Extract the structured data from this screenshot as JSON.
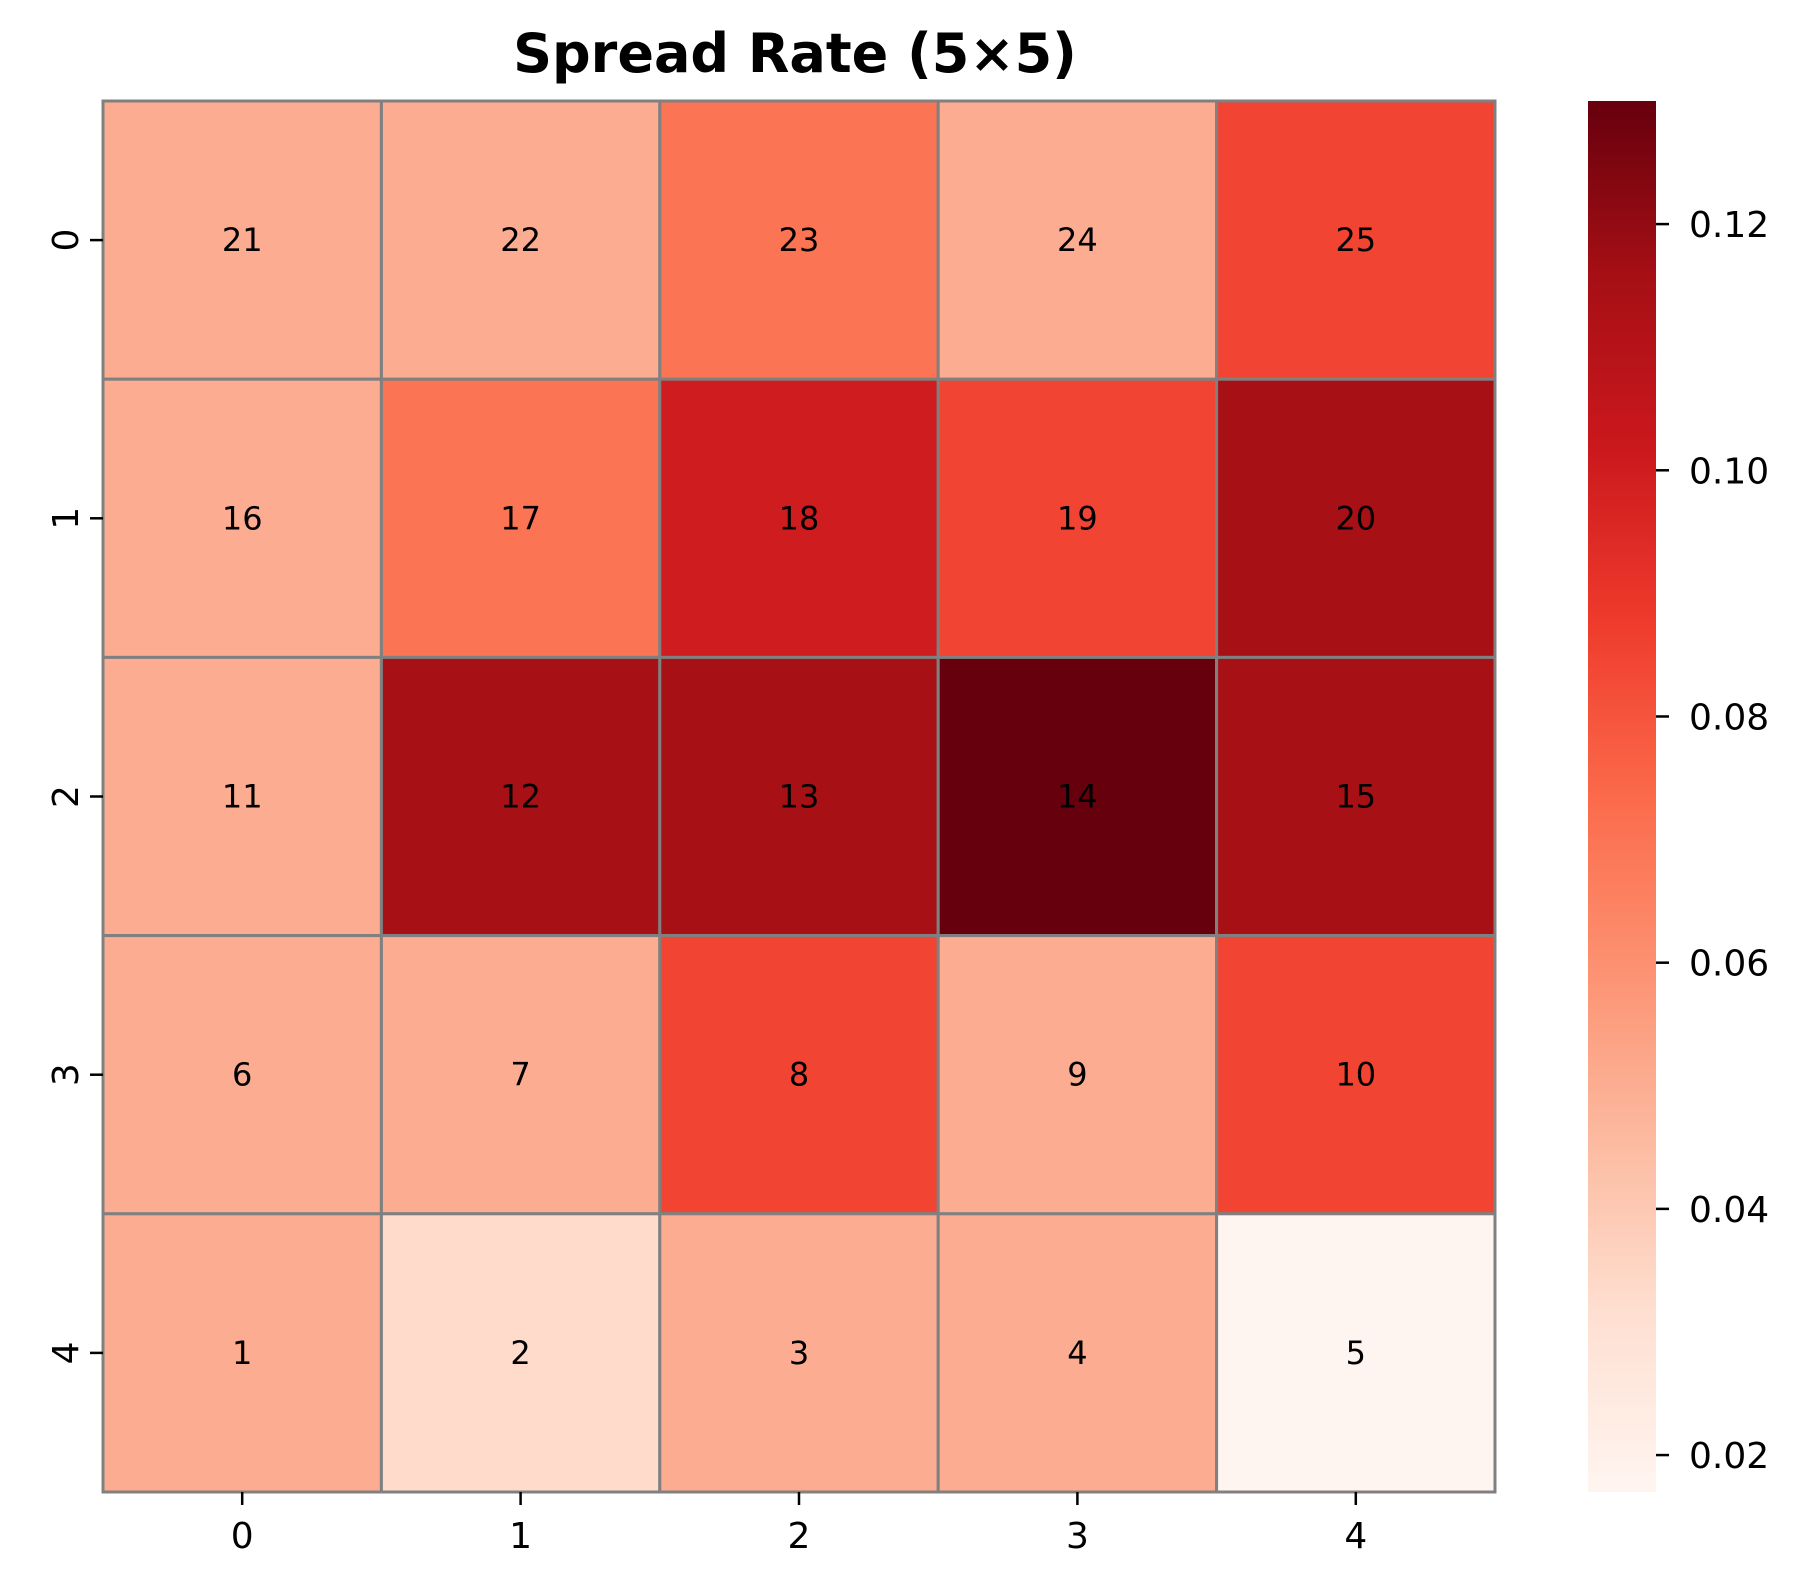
{
  "chart_data": {
    "type": "heatmap",
    "title": "Spread Rate (5×5)",
    "xlabel": "",
    "ylabel": "",
    "x_ticks": [
      "0",
      "1",
      "2",
      "3",
      "4"
    ],
    "y_ticks": [
      "0",
      "1",
      "2",
      "3",
      "4"
    ],
    "cell_labels": [
      [
        "21",
        "22",
        "23",
        "24",
        "25"
      ],
      [
        "16",
        "17",
        "18",
        "19",
        "20"
      ],
      [
        "11",
        "12",
        "13",
        "14",
        "15"
      ],
      [
        "6",
        "7",
        "8",
        "9",
        "10"
      ],
      [
        "1",
        "2",
        "3",
        "4",
        "5"
      ]
    ],
    "values": [
      [
        0.05,
        0.05,
        0.07,
        0.05,
        0.085
      ],
      [
        0.05,
        0.07,
        0.1,
        0.085,
        0.115
      ],
      [
        0.05,
        0.115,
        0.115,
        0.13,
        0.115
      ],
      [
        0.05,
        0.05,
        0.085,
        0.05,
        0.085
      ],
      [
        0.05,
        0.033,
        0.05,
        0.05,
        0.017
      ]
    ],
    "colormap": "Reds",
    "colorbar": {
      "min": 0.017,
      "max": 0.13,
      "ticks": [
        0.02,
        0.04,
        0.06,
        0.08,
        0.1,
        0.12
      ],
      "tick_labels": [
        "0.02",
        "0.04",
        "0.06",
        "0.08",
        "0.10",
        "0.12"
      ]
    },
    "gridline_color": "#808080",
    "legend": "colorbar-right"
  }
}
